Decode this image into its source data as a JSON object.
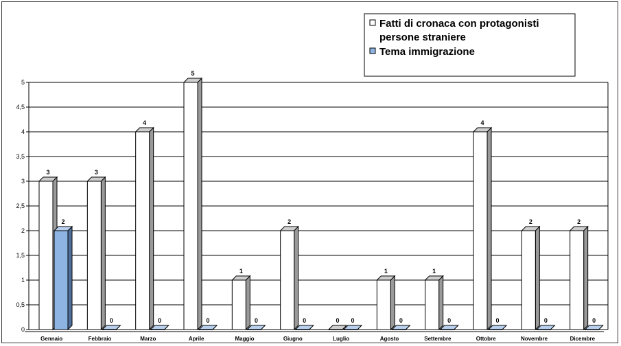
{
  "chart_data": {
    "type": "bar",
    "categories": [
      "Gennaio",
      "Febbraio",
      "Marzo",
      "Aprile",
      "Maggio",
      "Giugno",
      "Luglio",
      "Agosto",
      "Settembre",
      "Ottobre",
      "Novembre",
      "Dicembre"
    ],
    "series": [
      {
        "name": "Fatti di cronaca con protagonisti persone straniere",
        "values": [
          3,
          3,
          4,
          5,
          1,
          2,
          0,
          1,
          1,
          4,
          2,
          2
        ],
        "color": "#ffffff"
      },
      {
        "name": "Tema immigrazione",
        "values": [
          2,
          0,
          0,
          0,
          0,
          0,
          0,
          0,
          0,
          0,
          0,
          0
        ],
        "color": "#8db4e2"
      }
    ],
    "y_ticks": [
      "0",
      "0,5",
      "1",
      "1,5",
      "2",
      "2,5",
      "3",
      "3,5",
      "4",
      "4,5",
      "5"
    ],
    "ylim": [
      0,
      5
    ],
    "grid": true,
    "legend": {
      "placement": "top-right",
      "lines": [
        {
          "series": 0,
          "text_lines": [
            "Fatti di cronaca con protagonisti",
            "persone straniere"
          ]
        },
        {
          "series": 1,
          "text_lines": [
            "Tema immigrazione"
          ]
        }
      ]
    },
    "colors": {
      "side": "#9a9a9a",
      "top": "#cfcfcf",
      "grid": "#000000",
      "blue_side": "#4f6f9a",
      "blue_top": "#b8d0ee"
    }
  }
}
